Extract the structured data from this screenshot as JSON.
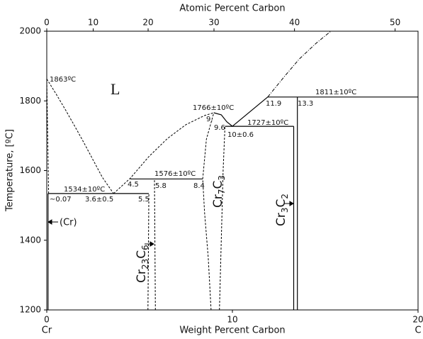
{
  "chart_data": {
    "type": "phase",
    "top_axis_label": "Atomic Percent Carbon",
    "x_label": "Weight Percent Carbon",
    "y_label": "Temperature, [ºC]",
    "x_left_label": "Cr",
    "x_right_label": "C",
    "xlim": [
      0,
      20
    ],
    "xticks": [
      0,
      10,
      20
    ],
    "x2lim": [
      0,
      100
    ],
    "x2ticks": [
      0,
      10,
      20,
      30,
      40,
      50
    ],
    "x2scale": "atomic-percent",
    "ylim": [
      1200,
      2000
    ],
    "yticks": [
      1200,
      1400,
      1600,
      1800,
      2000
    ],
    "lines": [
      {
        "style": "dashed",
        "x": [
          0,
          0.5,
          1,
          1.5,
          2,
          2.5,
          3,
          3.6
        ],
        "y": [
          1863,
          1820,
          1775,
          1728,
          1680,
          1630,
          1580,
          1534
        ]
      },
      {
        "style": "dashed",
        "x": [
          3.6,
          4.5,
          5.5,
          6.5,
          7.5,
          8.5,
          9.0
        ],
        "y": [
          1534,
          1578,
          1640,
          1692,
          1732,
          1758,
          1766
        ]
      },
      {
        "style": "solid",
        "x": [
          0.07,
          5.5
        ],
        "y": [
          1534,
          1534
        ]
      },
      {
        "style": "solid",
        "x": [
          4.5,
          8.4
        ],
        "y": [
          1576,
          1576
        ]
      },
      {
        "style": "dashed",
        "x": [
          5.45,
          5.5
        ],
        "y": [
          1200,
          1534
        ]
      },
      {
        "style": "dashed",
        "x": [
          5.85,
          5.8
        ],
        "y": [
          1200,
          1576
        ]
      },
      {
        "style": "dashed",
        "x": [
          8.85,
          8.7,
          8.5,
          8.4,
          8.6,
          9.0
        ],
        "y": [
          1200,
          1350,
          1480,
          1576,
          1690,
          1766
        ]
      },
      {
        "style": "dashed",
        "x": [
          9.3,
          9.4,
          9.5,
          9.6
        ],
        "y": [
          1200,
          1400,
          1600,
          1727
        ]
      },
      {
        "style": "solid",
        "x": [
          9.0,
          9.4,
          9.7,
          10.0
        ],
        "y": [
          1766,
          1760,
          1740,
          1727
        ]
      },
      {
        "style": "solid",
        "x": [
          9.6,
          13.3
        ],
        "y": [
          1727,
          1727
        ]
      },
      {
        "style": "solid",
        "x": [
          10,
          11.9
        ],
        "y": [
          1727,
          1811
        ]
      },
      {
        "style": "dashdot",
        "x": [
          11.9,
          12.8,
          13.6,
          14.5,
          15.3
        ],
        "y": [
          1811,
          1870,
          1920,
          1965,
          2000
        ]
      },
      {
        "style": "solid",
        "x": [
          11.9,
          20
        ],
        "y": [
          1811,
          1811
        ]
      },
      {
        "style": "solid",
        "x": [
          13.3,
          13.3
        ],
        "y": [
          1200,
          1727
        ]
      },
      {
        "style": "solid",
        "x": [
          13.5,
          13.5
        ],
        "y": [
          1200,
          1811
        ]
      },
      {
        "style": "solid",
        "x": [
          0.07,
          0.07
        ],
        "y": [
          1200,
          1534
        ]
      },
      {
        "style": "dashed",
        "x": [
          0.1,
          0.05,
          0
        ],
        "y": [
          1534,
          1700,
          1863
        ]
      }
    ],
    "annotations": [
      "1863ºC",
      "L",
      "1766±10ºC",
      "9.",
      "9.6",
      "1727±10ºC",
      "10±0.6",
      "11.9",
      "13.3",
      "1811±10ºC",
      "4.5",
      "1576±10ºC",
      "5.8",
      "8.4",
      "1534±10ºC",
      "~0.07",
      "3.6±0.5",
      "5.5",
      "(Cr)"
    ],
    "phases": [
      [
        "Cr",
        "23",
        "C",
        "6"
      ],
      [
        "Cr",
        "7",
        "C",
        "3"
      ],
      [
        "Cr",
        "3",
        "C",
        "2"
      ]
    ]
  }
}
